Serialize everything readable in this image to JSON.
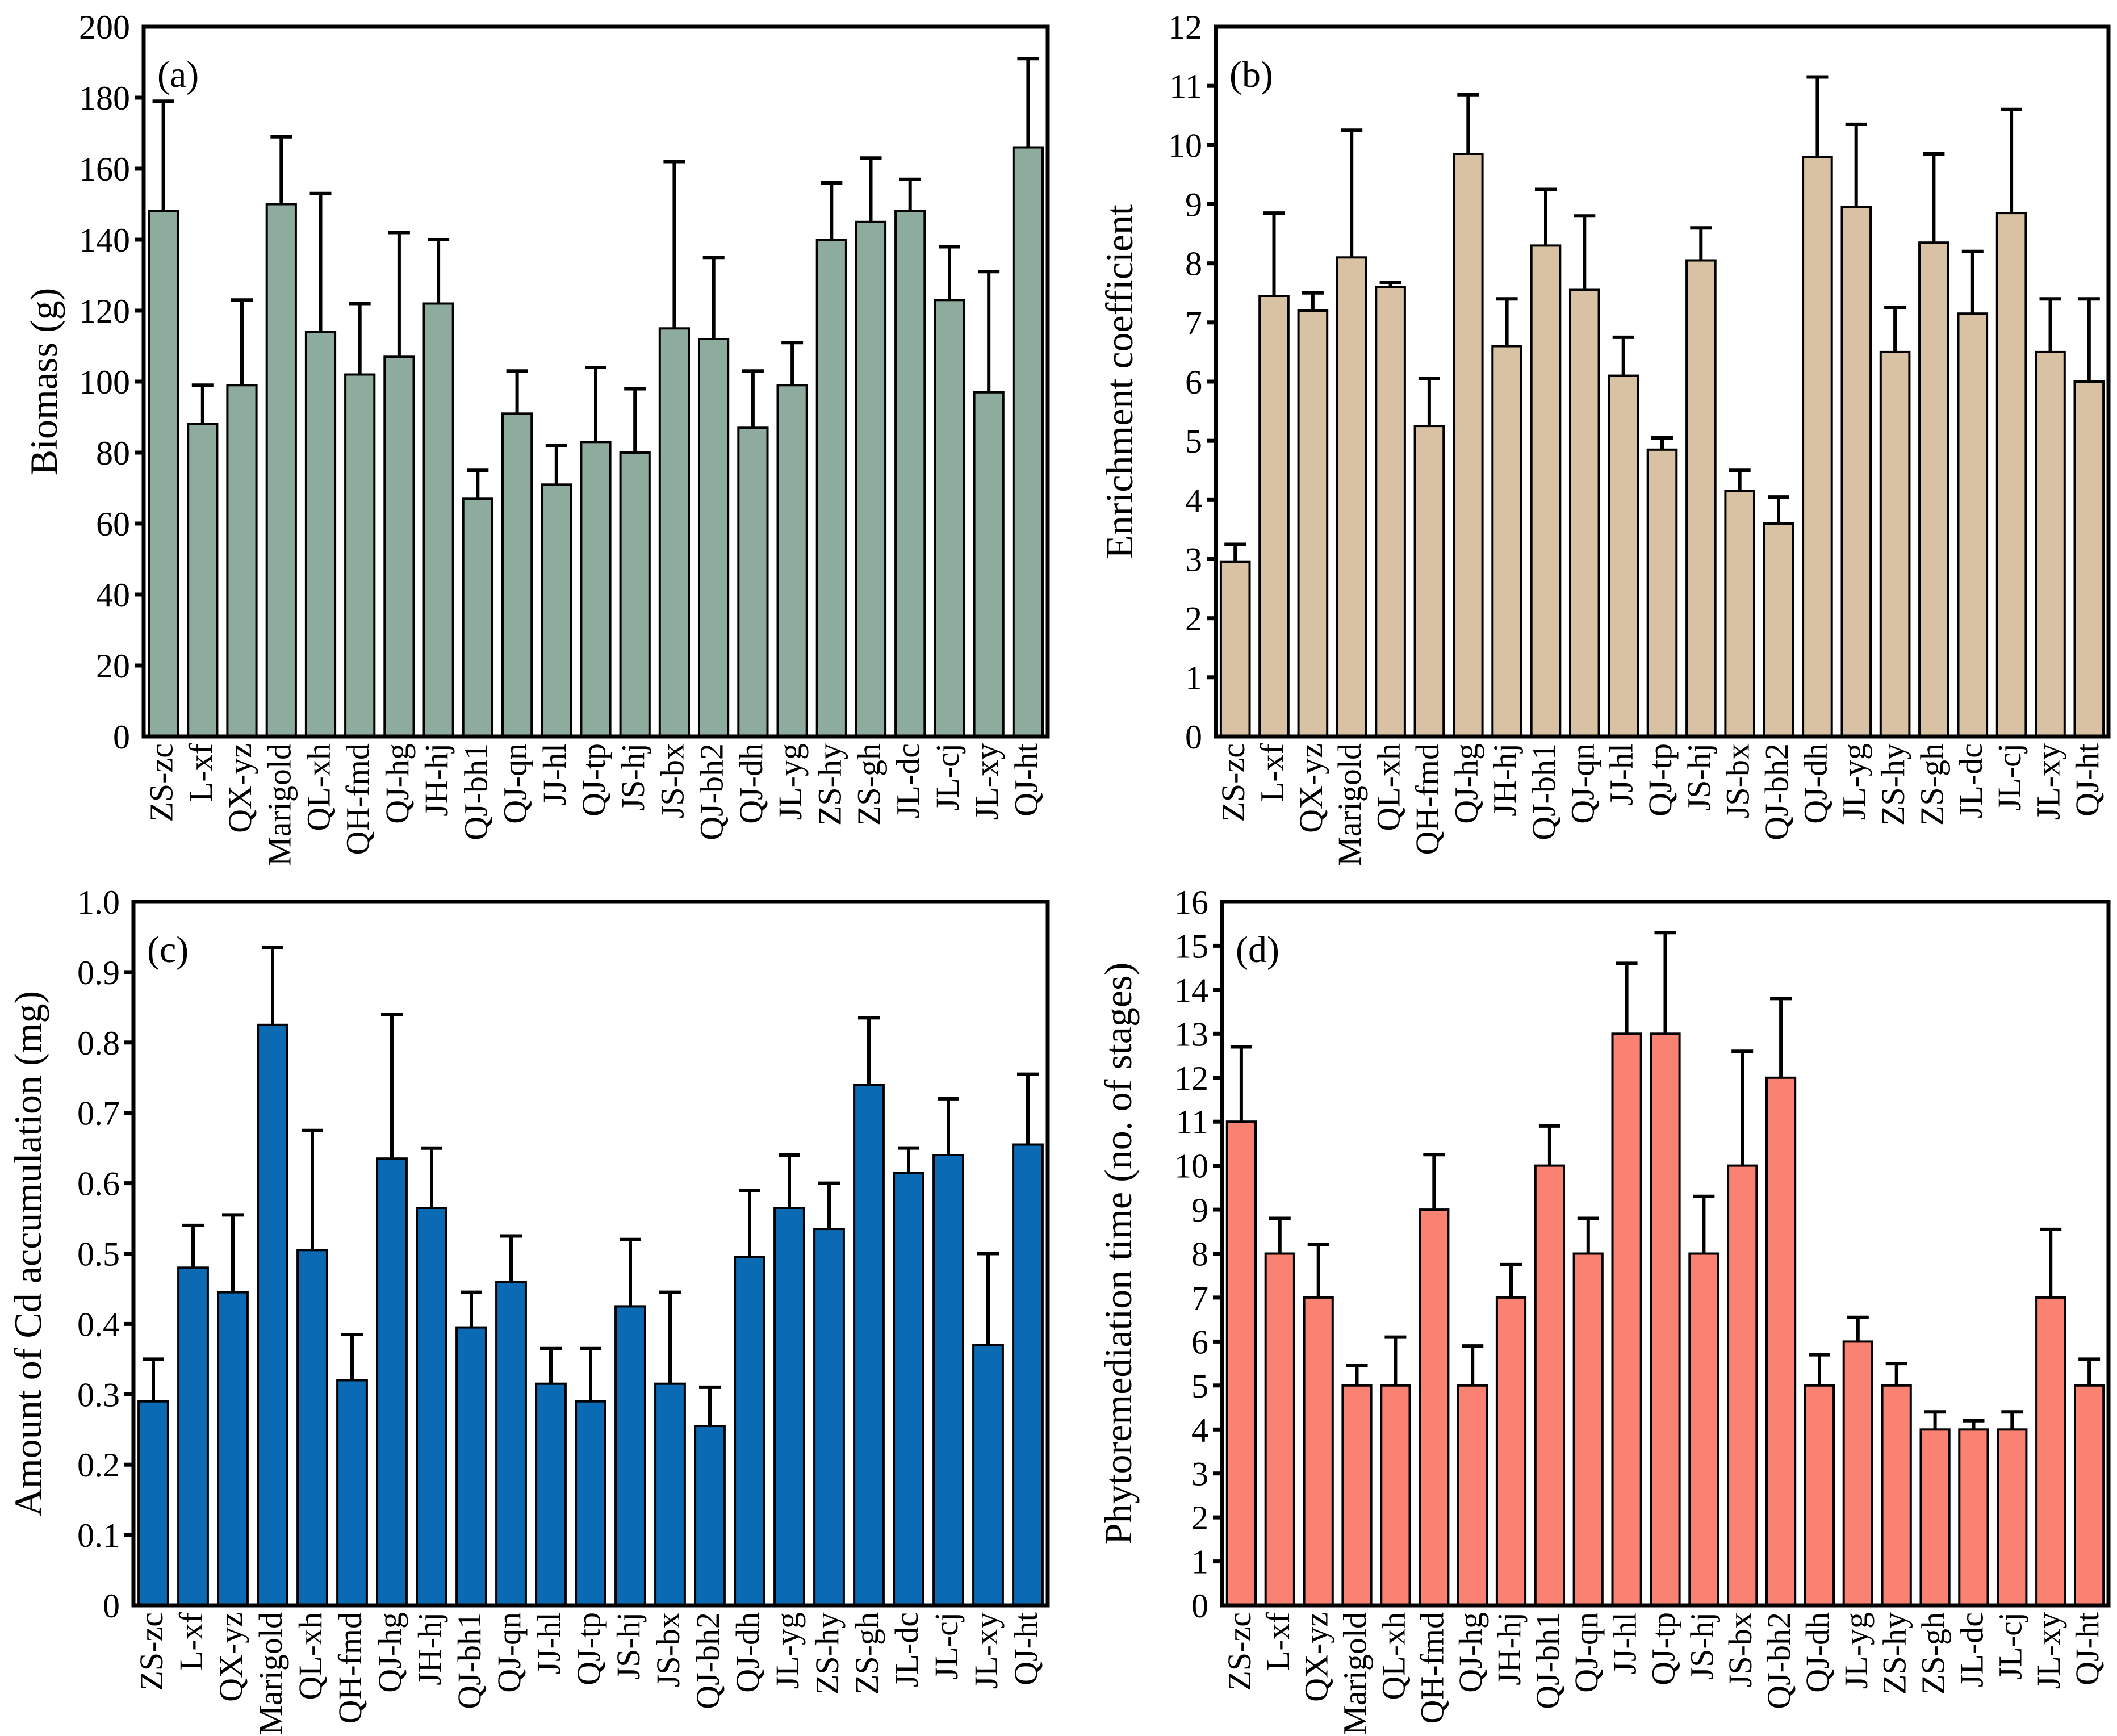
{
  "figure": {
    "background": "#ffffff",
    "axis_color": "#000000",
    "description_categories": [
      "ZS-zc",
      "L-xf",
      "QX-yz",
      "Marigold",
      "QL-xh",
      "QH-fmd",
      "QJ-hg",
      "JH-hj",
      "QJ-bh1",
      "QJ-qn",
      "JJ-hl",
      "QJ-tp",
      "JS-hj",
      "JS-bx",
      "QJ-bh2",
      "QJ-dh",
      "JL-yg",
      "ZS-hy",
      "ZS-gh",
      "JL-dc",
      "JL-cj",
      "JL-xy",
      "QJ-ht"
    ]
  },
  "chart_data": [
    {
      "type": "bar",
      "panel_label": "(a)",
      "title": "",
      "xlabel": "",
      "ylabel": "Biomass (g)",
      "ylim": [
        0,
        200
      ],
      "ytick_step": 20,
      "ytick_decimals": 0,
      "grid": false,
      "legend": "none",
      "error_bars": "upper",
      "bar_color": "#8EAC9D",
      "bar_edge_color": "#000000",
      "categories": [
        "ZS-zc",
        "L-xf",
        "QX-yz",
        "Marigold",
        "QL-xh",
        "QH-fmd",
        "QJ-hg",
        "JH-hj",
        "QJ-bh1",
        "QJ-qn",
        "JJ-hl",
        "QJ-tp",
        "JS-hj",
        "JS-bx",
        "QJ-bh2",
        "QJ-dh",
        "JL-yg",
        "ZS-hy",
        "ZS-gh",
        "JL-dc",
        "JL-cj",
        "JL-xy",
        "QJ-ht"
      ],
      "values": [
        148,
        88,
        99,
        150,
        114,
        102,
        107,
        122,
        67,
        91,
        71,
        83,
        80,
        115,
        112,
        87,
        99,
        140,
        145,
        148,
        123,
        97,
        166
      ],
      "errors_plus": [
        31,
        11,
        24,
        19,
        39,
        20,
        35,
        18,
        8,
        12,
        11,
        21,
        18,
        47,
        23,
        16,
        12,
        16,
        18,
        9,
        15,
        34,
        25
      ]
    },
    {
      "type": "bar",
      "panel_label": "(b)",
      "title": "",
      "xlabel": "",
      "ylabel": "Enrichment coefficient",
      "ylim": [
        0,
        12
      ],
      "ytick_step": 1,
      "ytick_decimals": 0,
      "grid": false,
      "legend": "none",
      "error_bars": "upper",
      "bar_color": "#D8C2A3",
      "bar_edge_color": "#000000",
      "categories": [
        "ZS-zc",
        "L-xf",
        "QX-yz",
        "Marigold",
        "QL-xh",
        "QH-fmd",
        "QJ-hg",
        "JH-hj",
        "QJ-bh1",
        "QJ-qn",
        "JJ-hl",
        "QJ-tp",
        "JS-hj",
        "JS-bx",
        "QJ-bh2",
        "QJ-dh",
        "JL-yg",
        "ZS-hy",
        "ZS-gh",
        "JL-dc",
        "JL-cj",
        "JL-xy",
        "QJ-ht"
      ],
      "values": [
        2.95,
        7.45,
        7.2,
        8.1,
        7.6,
        5.25,
        9.85,
        6.6,
        8.3,
        7.55,
        6.1,
        4.85,
        8.05,
        4.15,
        3.6,
        9.8,
        8.95,
        6.5,
        8.35,
        7.15,
        8.85,
        6.5,
        6.0
      ],
      "errors_plus": [
        0.3,
        1.4,
        0.3,
        2.15,
        0.08,
        0.8,
        1.0,
        0.8,
        0.95,
        1.25,
        0.65,
        0.2,
        0.55,
        0.35,
        0.45,
        1.35,
        1.4,
        0.75,
        1.5,
        1.05,
        1.75,
        0.9,
        1.4
      ]
    },
    {
      "type": "bar",
      "panel_label": "(c)",
      "title": "",
      "xlabel": "",
      "ylabel": "Amount of Cd accumulation (mg)",
      "ylim": [
        0,
        1.0
      ],
      "ytick_step": 0.1,
      "ytick_decimals": 1,
      "grid": false,
      "legend": "none",
      "error_bars": "upper",
      "bar_color": "#0A6BB4",
      "bar_edge_color": "#000000",
      "categories": [
        "ZS-zc",
        "L-xf",
        "QX-yz",
        "Marigold",
        "QL-xh",
        "QH-fmd",
        "QJ-hg",
        "JH-hj",
        "QJ-bh1",
        "QJ-qn",
        "JJ-hl",
        "QJ-tp",
        "JS-hj",
        "JS-bx",
        "QJ-bh2",
        "QJ-dh",
        "JL-yg",
        "ZS-hy",
        "ZS-gh",
        "JL-dc",
        "JL-cj",
        "JL-xy",
        "QJ-ht"
      ],
      "values": [
        0.29,
        0.48,
        0.445,
        0.825,
        0.505,
        0.32,
        0.635,
        0.565,
        0.395,
        0.46,
        0.315,
        0.29,
        0.425,
        0.315,
        0.255,
        0.495,
        0.565,
        0.535,
        0.74,
        0.615,
        0.64,
        0.37,
        0.655
      ],
      "errors_plus": [
        0.06,
        0.06,
        0.11,
        0.11,
        0.17,
        0.065,
        0.205,
        0.085,
        0.05,
        0.065,
        0.05,
        0.075,
        0.095,
        0.13,
        0.055,
        0.095,
        0.075,
        0.065,
        0.095,
        0.035,
        0.08,
        0.13,
        0.1
      ]
    },
    {
      "type": "bar",
      "panel_label": "(d)",
      "title": "",
      "xlabel": "",
      "ylabel": "Phytoremediation time (no. of stages)",
      "ylim": [
        0,
        16
      ],
      "ytick_step": 1,
      "ytick_decimals": 0,
      "grid": false,
      "legend": "none",
      "error_bars": "upper",
      "bar_color": "#FA8272",
      "bar_edge_color": "#000000",
      "categories": [
        "ZS-zc",
        "L-xf",
        "QX-yz",
        "Marigold",
        "QL-xh",
        "QH-fmd",
        "QJ-hg",
        "JH-hj",
        "QJ-bh1",
        "QJ-qn",
        "JJ-hl",
        "QJ-tp",
        "JS-hj",
        "JS-bx",
        "QJ-bh2",
        "QJ-dh",
        "JL-yg",
        "ZS-hy",
        "ZS-gh",
        "JL-dc",
        "JL-cj",
        "JL-xy",
        "QJ-ht"
      ],
      "values": [
        11,
        8,
        7,
        5,
        5,
        9,
        5,
        7,
        10,
        8,
        13,
        13,
        8,
        10,
        12,
        5,
        6,
        5,
        4,
        4,
        4,
        7,
        5
      ],
      "errors_plus": [
        1.7,
        0.8,
        1.2,
        0.45,
        1.1,
        1.25,
        0.9,
        0.75,
        0.9,
        0.8,
        1.6,
        2.3,
        1.3,
        2.6,
        1.8,
        0.7,
        0.55,
        0.5,
        0.4,
        0.2,
        0.4,
        1.55,
        0.6
      ]
    }
  ]
}
